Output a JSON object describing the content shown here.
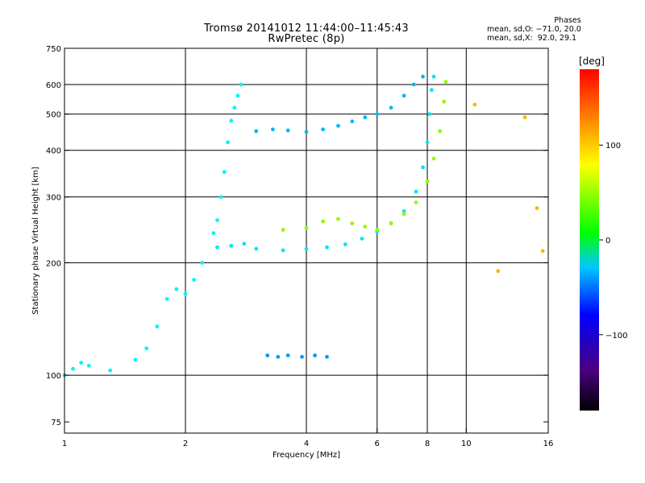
{
  "header": {
    "title_line1": "Tromsø 20141012 11:44:00–11:45:43",
    "title_line2": "RwPretec (8p)"
  },
  "phase_info": {
    "title": "Phases",
    "line_o": "mean, sd,O: −71.0, 20.0",
    "line_x": "mean, sd,X:  92.0, 29.1"
  },
  "colorbar": {
    "unit_label": "[deg]",
    "ticks": [
      "100",
      "0",
      "−100"
    ],
    "tick_values": [
      100,
      0,
      -100
    ],
    "range": [
      -180,
      180
    ]
  },
  "chart_data": {
    "type": "scatter",
    "title": "Tromsø 20141012 11:44:00–11:45:43",
    "subtitle": "RwPretec (8p)",
    "xlabel": "Frequency [MHz]",
    "ylabel": "Stationary phase Virtual Height [km]",
    "xscale": "log2",
    "yscale": "log",
    "xlim": [
      1,
      16
    ],
    "ylim": [
      70,
      750
    ],
    "x_ticks": [
      "1",
      "2",
      "4",
      "6",
      "8",
      "10",
      "16"
    ],
    "x_tick_values": [
      1,
      2,
      4,
      6,
      8,
      10,
      16
    ],
    "y_ticks": [
      "75",
      "100",
      "200",
      "300",
      "400",
      "500",
      "600",
      "750"
    ],
    "y_tick_values": [
      75,
      100,
      200,
      300,
      400,
      500,
      600,
      750
    ],
    "grid_x": [
      2,
      4,
      6,
      8,
      10
    ],
    "grid_y": [
      100,
      200,
      300,
      400,
      500,
      600
    ],
    "traces": [
      {
        "name": "",
        "phase": -60,
        "points": [
          [
            1.0,
            100
          ],
          [
            1.05,
            104
          ],
          [
            1.1,
            108
          ],
          [
            1.15,
            106
          ],
          [
            1.3,
            103
          ],
          [
            1.5,
            110
          ],
          [
            1.6,
            118
          ],
          [
            1.7,
            135
          ],
          [
            1.8,
            160
          ],
          [
            1.9,
            170
          ],
          [
            2.0,
            165
          ],
          [
            2.1,
            180
          ],
          [
            2.2,
            200
          ],
          [
            2.35,
            240
          ],
          [
            2.4,
            260
          ],
          [
            2.45,
            300
          ],
          [
            2.5,
            350
          ],
          [
            2.55,
            420
          ],
          [
            2.6,
            480
          ],
          [
            2.65,
            520
          ],
          [
            2.7,
            560
          ],
          [
            2.75,
            600
          ]
        ]
      },
      {
        "name": "",
        "phase": -65,
        "points": [
          [
            2.4,
            220
          ],
          [
            2.6,
            222
          ],
          [
            2.8,
            225
          ],
          [
            3.0,
            218
          ],
          [
            3.5,
            216
          ],
          [
            4.0,
            218
          ],
          [
            4.5,
            220
          ],
          [
            5.0,
            224
          ],
          [
            5.5,
            232
          ],
          [
            6.0,
            242
          ],
          [
            6.5,
            255
          ],
          [
            7.0,
            275
          ],
          [
            7.5,
            310
          ],
          [
            7.8,
            360
          ],
          [
            8.0,
            420
          ],
          [
            8.1,
            500
          ],
          [
            8.2,
            580
          ],
          [
            8.3,
            630
          ]
        ]
      },
      {
        "name": "",
        "phase": 70,
        "points": [
          [
            3.5,
            245
          ],
          [
            4.0,
            248
          ],
          [
            4.4,
            258
          ],
          [
            4.8,
            262
          ],
          [
            5.2,
            255
          ],
          [
            5.6,
            250
          ],
          [
            6.0,
            245
          ],
          [
            6.5,
            255
          ],
          [
            7.0,
            270
          ],
          [
            7.5,
            290
          ],
          [
            8.0,
            330
          ],
          [
            8.3,
            380
          ],
          [
            8.6,
            450
          ],
          [
            8.8,
            540
          ],
          [
            8.9,
            610
          ]
        ]
      },
      {
        "name": "",
        "phase": -80,
        "points": [
          [
            3.0,
            450
          ],
          [
            3.3,
            455
          ],
          [
            3.6,
            452
          ],
          [
            4.0,
            448
          ],
          [
            4.4,
            455
          ],
          [
            4.8,
            465
          ],
          [
            5.2,
            478
          ],
          [
            5.6,
            490
          ],
          [
            6.0,
            500
          ],
          [
            6.5,
            520
          ],
          [
            7.0,
            560
          ],
          [
            7.4,
            600
          ],
          [
            7.8,
            630
          ]
        ]
      },
      {
        "name": "",
        "phase": -90,
        "points": [
          [
            3.2,
            113
          ],
          [
            3.4,
            112
          ],
          [
            3.6,
            113
          ],
          [
            3.9,
            112
          ],
          [
            4.2,
            113
          ],
          [
            4.5,
            112
          ]
        ]
      },
      {
        "name": "",
        "phase": 120,
        "points": [
          [
            10.5,
            530
          ],
          [
            12.0,
            190
          ],
          [
            14.0,
            490
          ],
          [
            15.0,
            280
          ],
          [
            15.5,
            215
          ]
        ]
      }
    ]
  }
}
